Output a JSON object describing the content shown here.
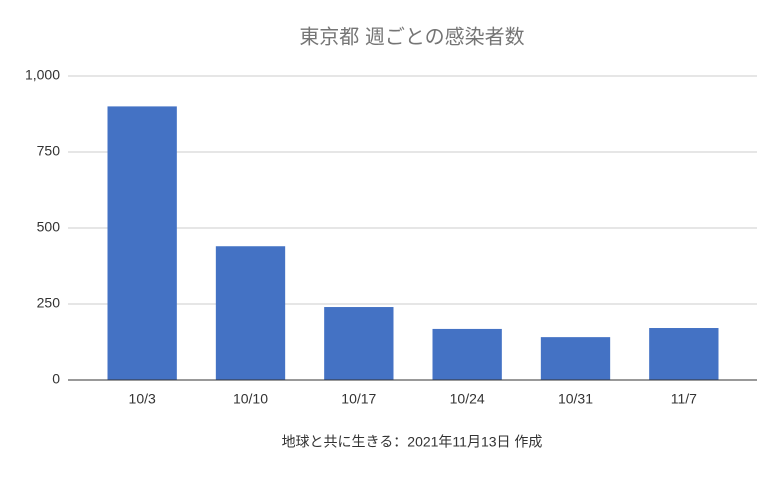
{
  "chart_data": {
    "type": "bar",
    "title": "東京都 週ごとの感染者数",
    "x_label": "地球と共に生きる：2021年11月13日 作成",
    "categories": [
      "10/3",
      "10/10",
      "10/17",
      "10/24",
      "10/31",
      "11/7"
    ],
    "values": [
      900,
      440,
      240,
      168,
      141,
      171
    ],
    "color": "#4472c4",
    "ylim": [
      0,
      1000
    ],
    "yticks": [
      0,
      250,
      500,
      750,
      {
        "value": 1000,
        "label": "1,000"
      }
    ],
    "grid": true
  }
}
